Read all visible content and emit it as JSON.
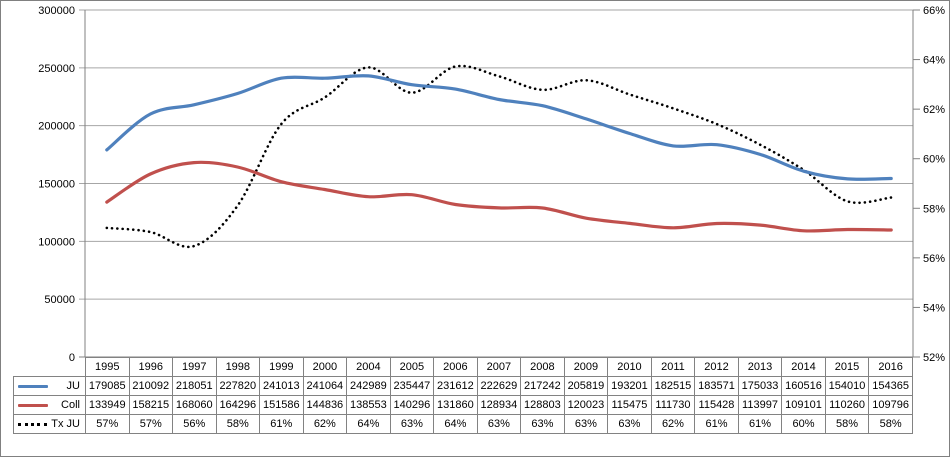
{
  "chart_data": {
    "type": "line",
    "title": "",
    "categories": [
      "1995",
      "1996",
      "1997",
      "1998",
      "1999",
      "2000",
      "2004",
      "2005",
      "2006",
      "2007",
      "2008",
      "2009",
      "2010",
      "2011",
      "2012",
      "2013",
      "2014",
      "2015",
      "2016"
    ],
    "series": [
      {
        "name": "JU",
        "color": "#4F81BD",
        "line_style": "solid",
        "axis": "left",
        "values": [
          179085,
          210092,
          218051,
          227820,
          241013,
          241064,
          242989,
          235447,
          231612,
          222629,
          217242,
          205819,
          193201,
          182515,
          183571,
          175033,
          160516,
          154010,
          154365
        ]
      },
      {
        "name": "Coll",
        "color": "#C0504D",
        "line_style": "solid",
        "axis": "left",
        "values": [
          133949,
          158215,
          168060,
          164296,
          151586,
          144836,
          138553,
          140296,
          131860,
          128934,
          128803,
          120023,
          115475,
          111730,
          115428,
          113997,
          109101,
          110260,
          109796
        ]
      },
      {
        "name": "Tx JU",
        "color": "#000000",
        "line_style": "dotted",
        "axis": "right",
        "values": [
          "57%",
          "57%",
          "56%",
          "58%",
          "61%",
          "62%",
          "64%",
          "63%",
          "64%",
          "63%",
          "63%",
          "63%",
          "63%",
          "62%",
          "61%",
          "61%",
          "60%",
          "58%",
          "58%"
        ],
        "derived_from_ratio": "JU / (JU + Coll)"
      }
    ],
    "left_axis": {
      "min": 0,
      "max": 300000,
      "step": 50000,
      "tick_labels": [
        "300000",
        "250000",
        "200000",
        "150000",
        "100000",
        "50000",
        "0"
      ]
    },
    "right_axis": {
      "min": 52,
      "max": 66,
      "step": 2,
      "tick_labels": [
        "66%",
        "64%",
        "62%",
        "60%",
        "58%",
        "56%",
        "54%",
        "52%"
      ]
    },
    "gridlines": "horizontal",
    "legend_position": "data-table-left",
    "colors": {
      "grid": "#A6A6A6",
      "axis": "#808080",
      "table_border": "#828282",
      "text": "#000000",
      "background": "#FFFFFF"
    }
  }
}
